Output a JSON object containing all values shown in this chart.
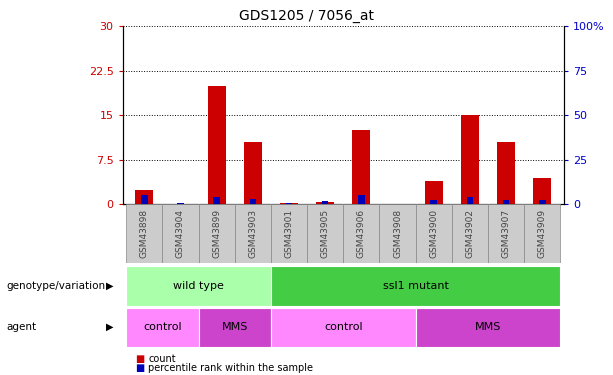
{
  "title": "GDS1205 / 7056_at",
  "samples": [
    "GSM43898",
    "GSM43904",
    "GSM43899",
    "GSM43903",
    "GSM43901",
    "GSM43905",
    "GSM43906",
    "GSM43908",
    "GSM43900",
    "GSM43902",
    "GSM43907",
    "GSM43909"
  ],
  "counts": [
    2.5,
    0.05,
    20.0,
    10.5,
    0.15,
    0.4,
    12.5,
    0.05,
    4.0,
    15.0,
    10.5,
    4.5
  ],
  "percentiles": [
    5.0,
    0.5,
    4.0,
    3.0,
    0.7,
    2.0,
    5.0,
    0.3,
    2.5,
    4.0,
    2.5,
    2.3
  ],
  "ylim_left": [
    0,
    30
  ],
  "ylim_right": [
    0,
    100
  ],
  "yticks_left": [
    0,
    7.5,
    15,
    22.5,
    30
  ],
  "yticks_right": [
    0,
    25,
    50,
    75,
    100
  ],
  "bar_color_red": "#cc0000",
  "bar_color_blue": "#0000bb",
  "bar_width": 0.5,
  "blue_bar_width": 0.18,
  "genotype_groups": [
    {
      "label": "wild type",
      "start": 0,
      "end": 4,
      "color": "#aaffaa"
    },
    {
      "label": "ssl1 mutant",
      "start": 4,
      "end": 12,
      "color": "#44cc44"
    }
  ],
  "agent_groups": [
    {
      "label": "control",
      "start": 0,
      "end": 2,
      "color": "#ff88ff"
    },
    {
      "label": "MMS",
      "start": 2,
      "end": 4,
      "color": "#cc44cc"
    },
    {
      "label": "control",
      "start": 4,
      "end": 8,
      "color": "#ff88ff"
    },
    {
      "label": "MMS",
      "start": 8,
      "end": 12,
      "color": "#cc44cc"
    }
  ],
  "legend_count_label": "count",
  "legend_pct_label": "percentile rank within the sample",
  "genotype_label": "genotype/variation",
  "agent_label": "agent",
  "tick_label_color": "#444444",
  "left_axis_color": "#cc0000",
  "right_axis_color": "#0000cc",
  "grid_color": "#000000",
  "sample_bg_color": "#cccccc",
  "sample_border_color": "#888888"
}
